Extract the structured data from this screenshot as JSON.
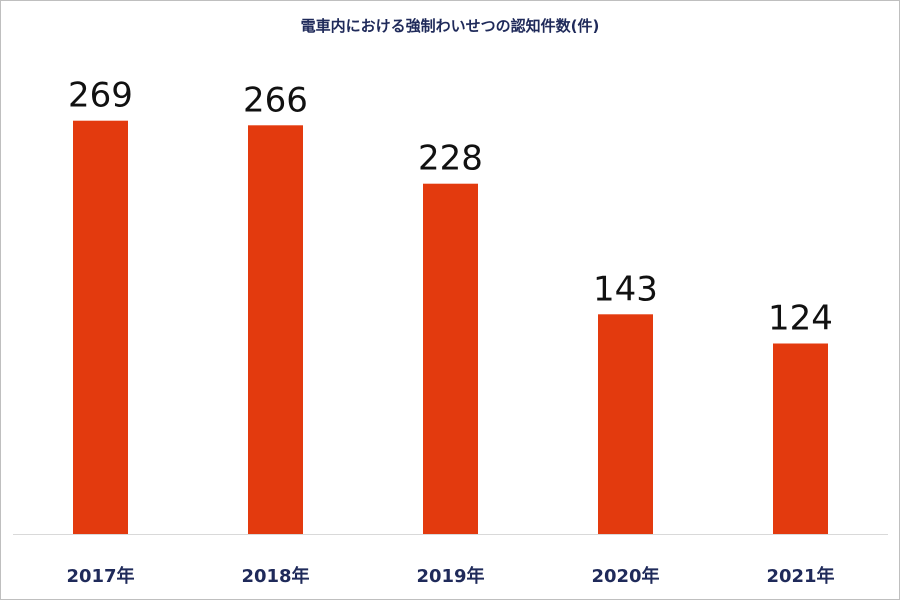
{
  "chart_data": {
    "type": "bar",
    "title": "電車内における強制わいせつの認知件数(件)",
    "categories": [
      "2017年",
      "2018年",
      "2019年",
      "2020年",
      "2021年"
    ],
    "values": [
      269,
      266,
      228,
      143,
      124
    ],
    "data_labels": [
      "269",
      "266",
      "228",
      "143",
      "124"
    ],
    "ylim": [
      0,
      289
    ],
    "grid": false,
    "legend": "none",
    "bar_color": "#e33a0e"
  }
}
